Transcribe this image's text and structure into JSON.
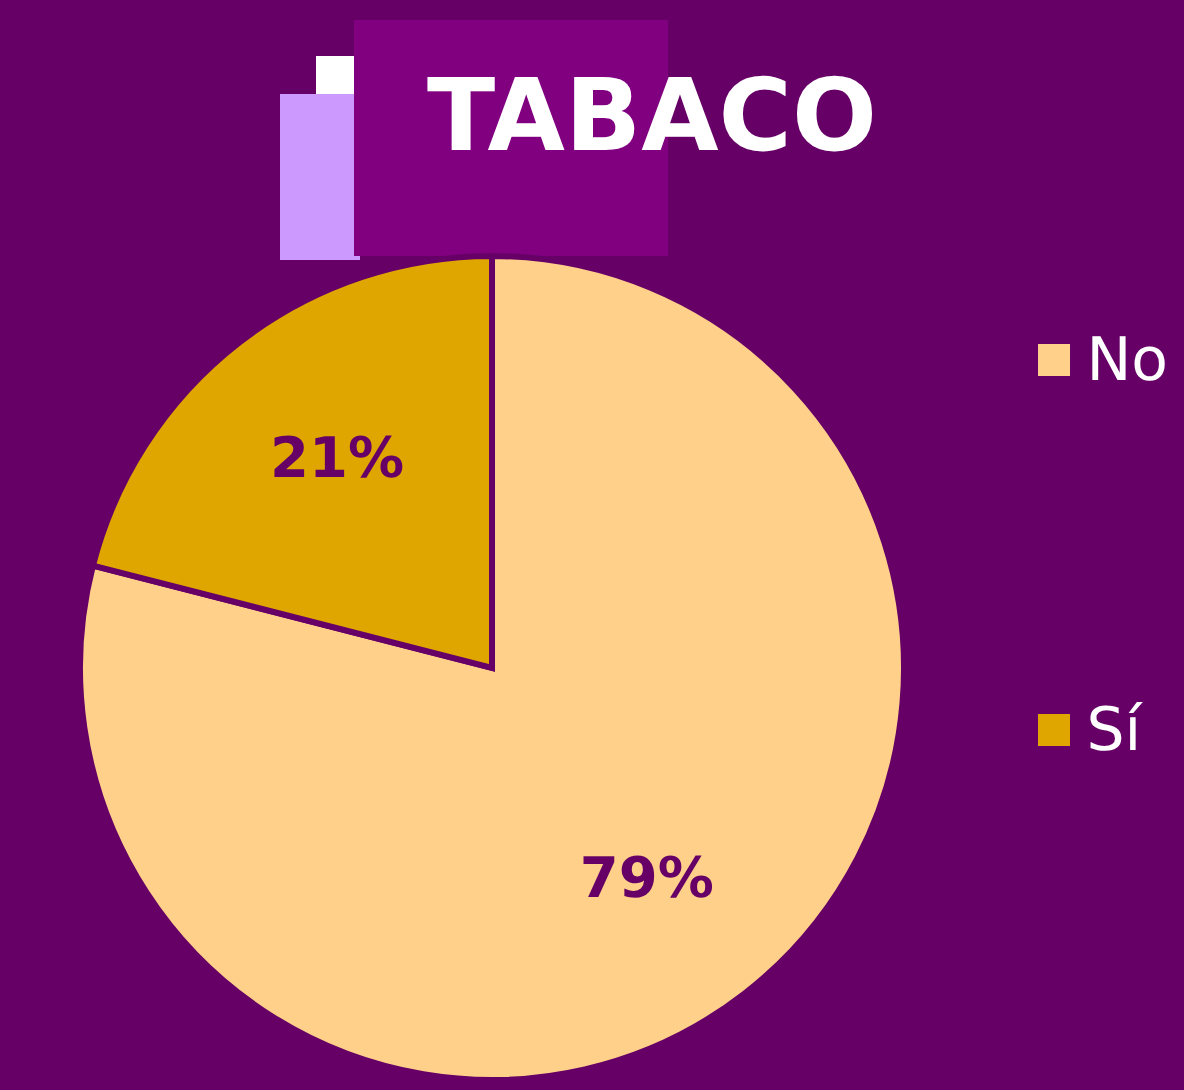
{
  "chart_data": {
    "type": "pie",
    "title": "TABACO",
    "categories": [
      "No",
      "Sí"
    ],
    "values": [
      79,
      21
    ],
    "colors": [
      "#ffd08a",
      "#e0a600"
    ],
    "value_labels": [
      "79%",
      "21%"
    ],
    "legend": "right"
  }
}
